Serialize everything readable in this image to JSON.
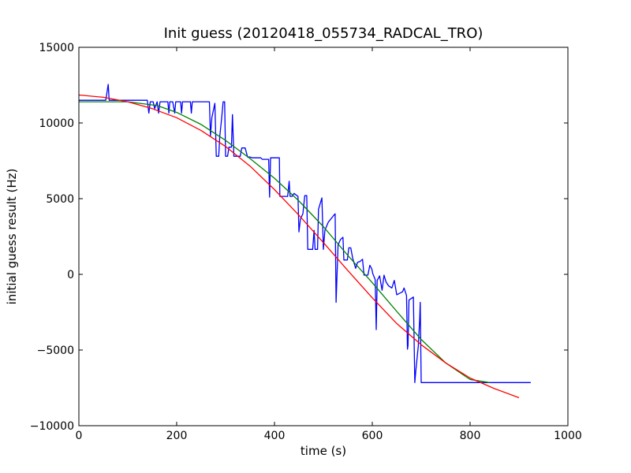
{
  "chart_data": {
    "type": "line",
    "title": "Init guess (20120418_055734_RADCAL_TRO)",
    "xlabel": "time (s)",
    "ylabel": "initial guess result (Hz)",
    "xlim": [
      0,
      1000
    ],
    "ylim": [
      -10000,
      15000
    ],
    "x_ticks": [
      0,
      200,
      400,
      600,
      800,
      1000
    ],
    "y_ticks": [
      -10000,
      -5000,
      0,
      5000,
      10000,
      15000
    ],
    "grid": false,
    "series": [
      {
        "color": "#0000ff",
        "points": [
          [
            0,
            11500
          ],
          [
            55,
            11500
          ],
          [
            60,
            12550
          ],
          [
            62,
            11500
          ],
          [
            140,
            11500
          ],
          [
            143,
            10650
          ],
          [
            146,
            11400
          ],
          [
            152,
            11400
          ],
          [
            155,
            10950
          ],
          [
            160,
            11400
          ],
          [
            163,
            10650
          ],
          [
            166,
            11400
          ],
          [
            182,
            11400
          ],
          [
            184,
            10650
          ],
          [
            186,
            11400
          ],
          [
            192,
            11400
          ],
          [
            196,
            10650
          ],
          [
            198,
            11400
          ],
          [
            208,
            11400
          ],
          [
            210,
            10650
          ],
          [
            212,
            11400
          ],
          [
            228,
            11400
          ],
          [
            230,
            10650
          ],
          [
            232,
            11400
          ],
          [
            267,
            11400
          ],
          [
            269,
            9150
          ],
          [
            272,
            10350
          ],
          [
            278,
            11300
          ],
          [
            281,
            7800
          ],
          [
            286,
            7800
          ],
          [
            288,
            9100
          ],
          [
            292,
            10300
          ],
          [
            295,
            11400
          ],
          [
            298,
            11400
          ],
          [
            300,
            7800
          ],
          [
            304,
            7800
          ],
          [
            307,
            8400
          ],
          [
            312,
            8400
          ],
          [
            314,
            10550
          ],
          [
            317,
            7800
          ],
          [
            330,
            7800
          ],
          [
            333,
            8350
          ],
          [
            340,
            8350
          ],
          [
            345,
            7750
          ],
          [
            350,
            7750
          ],
          [
            355,
            7700
          ],
          [
            372,
            7700
          ],
          [
            375,
            7600
          ],
          [
            388,
            7600
          ],
          [
            390,
            5100
          ],
          [
            392,
            7700
          ],
          [
            410,
            7700
          ],
          [
            411,
            5150
          ],
          [
            427,
            5150
          ],
          [
            430,
            6150
          ],
          [
            432,
            5150
          ],
          [
            436,
            5150
          ],
          [
            440,
            5350
          ],
          [
            448,
            5150
          ],
          [
            450,
            2800
          ],
          [
            453,
            3650
          ],
          [
            458,
            4000
          ],
          [
            462,
            5200
          ],
          [
            466,
            5200
          ],
          [
            468,
            1650
          ],
          [
            478,
            1650
          ],
          [
            481,
            2900
          ],
          [
            483,
            1650
          ],
          [
            488,
            1650
          ],
          [
            490,
            4300
          ],
          [
            497,
            5050
          ],
          [
            500,
            1650
          ],
          [
            503,
            2900
          ],
          [
            510,
            3450
          ],
          [
            520,
            3850
          ],
          [
            524,
            4000
          ],
          [
            526,
            -1850
          ],
          [
            530,
            1950
          ],
          [
            535,
            2300
          ],
          [
            540,
            2450
          ],
          [
            542,
            950
          ],
          [
            549,
            950
          ],
          [
            552,
            1750
          ],
          [
            556,
            1750
          ],
          [
            560,
            1050
          ],
          [
            566,
            400
          ],
          [
            570,
            800
          ],
          [
            575,
            850
          ],
          [
            580,
            1000
          ],
          [
            583,
            -50
          ],
          [
            591,
            -50
          ],
          [
            595,
            600
          ],
          [
            599,
            350
          ],
          [
            601,
            50
          ],
          [
            606,
            -350
          ],
          [
            608,
            -3650
          ],
          [
            610,
            -400
          ],
          [
            615,
            -100
          ],
          [
            620,
            -1050
          ],
          [
            624,
            -50
          ],
          [
            628,
            -500
          ],
          [
            633,
            -750
          ],
          [
            640,
            -900
          ],
          [
            645,
            -400
          ],
          [
            650,
            -1350
          ],
          [
            662,
            -1150
          ],
          [
            665,
            -900
          ],
          [
            670,
            -1400
          ],
          [
            672,
            -4950
          ],
          [
            673,
            -4700
          ],
          [
            675,
            -1700
          ],
          [
            684,
            -1500
          ],
          [
            687,
            -7150
          ],
          [
            689,
            -6350
          ],
          [
            694,
            -4750
          ],
          [
            697,
            -2950
          ],
          [
            698,
            -1850
          ],
          [
            700,
            -7150
          ],
          [
            924,
            -7150
          ]
        ]
      },
      {
        "color": "#008000",
        "points": [
          [
            0,
            11400
          ],
          [
            100,
            11400
          ],
          [
            160,
            11150
          ],
          [
            200,
            10700
          ],
          [
            250,
            9900
          ],
          [
            300,
            8850
          ],
          [
            350,
            7650
          ],
          [
            400,
            6350
          ],
          [
            450,
            4850
          ],
          [
            500,
            3150
          ],
          [
            550,
            1250
          ],
          [
            600,
            -550
          ],
          [
            650,
            -2450
          ],
          [
            700,
            -4300
          ],
          [
            750,
            -5850
          ],
          [
            800,
            -6950
          ],
          [
            840,
            -7150
          ]
        ]
      },
      {
        "color": "#ff0000",
        "points": [
          [
            0,
            11850
          ],
          [
            50,
            11700
          ],
          [
            100,
            11400
          ],
          [
            150,
            10950
          ],
          [
            200,
            10350
          ],
          [
            250,
            9500
          ],
          [
            300,
            8450
          ],
          [
            350,
            7150
          ],
          [
            400,
            5600
          ],
          [
            450,
            3900
          ],
          [
            500,
            2100
          ],
          [
            550,
            250
          ],
          [
            600,
            -1550
          ],
          [
            650,
            -3250
          ],
          [
            700,
            -4650
          ],
          [
            750,
            -5850
          ],
          [
            800,
            -6850
          ],
          [
            850,
            -7550
          ],
          [
            900,
            -8150
          ]
        ]
      }
    ]
  }
}
